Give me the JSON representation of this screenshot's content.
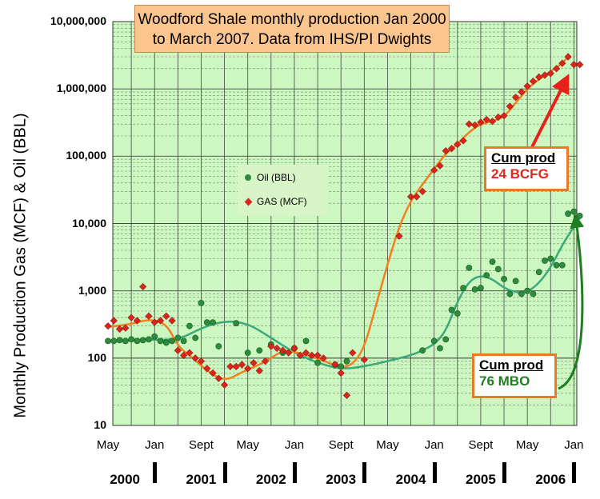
{
  "chart_data": {
    "type": "scatter",
    "title_lines": [
      "Woodford Shale monthly production Jan 2000",
      "to March 2007. Data from IHS/PI Dwights"
    ],
    "ylabel": "Monthly Production Gas (MCF) & Oil (BBL)",
    "yscale": "log",
    "ylim": [
      10,
      10000000
    ],
    "yticks": [
      "10",
      "100",
      "1,000",
      "10,000",
      "100,000",
      "1,000,000",
      "10,000,000"
    ],
    "month_labels": [
      "May",
      "Jan",
      "Sept",
      "May",
      "Jan",
      "Sept",
      "May",
      "Jan",
      "Sept",
      "May",
      "Jan"
    ],
    "year_labels": [
      "2000",
      "2001",
      "2002",
      "2003",
      "2004",
      "2005",
      "2006"
    ],
    "grid": true,
    "legend_position": "center-left",
    "series": [
      {
        "name": "Oil (BBL)",
        "color": "#2e8b3e",
        "marker": "circle",
        "points": [
          [
            "2000-05",
            180
          ],
          [
            "2000-06",
            180
          ],
          [
            "2000-07",
            185
          ],
          [
            "2000-08",
            180
          ],
          [
            "2000-09",
            190
          ],
          [
            "2000-10",
            180
          ],
          [
            "2000-11",
            185
          ],
          [
            "2000-12",
            190
          ],
          [
            "2001-01",
            210
          ],
          [
            "2001-02",
            180
          ],
          [
            "2001-03",
            170
          ],
          [
            "2001-04",
            180
          ],
          [
            "2001-05",
            200
          ],
          [
            "2001-06",
            180
          ],
          [
            "2001-07",
            300
          ],
          [
            "2001-08",
            200
          ],
          [
            "2001-09",
            660
          ],
          [
            "2001-10",
            340
          ],
          [
            "2001-11",
            340
          ],
          [
            "2001-12",
            150
          ],
          [
            "2002-03",
            330
          ],
          [
            "2002-05",
            120
          ],
          [
            "2002-07",
            130
          ],
          [
            "2002-09",
            160
          ],
          [
            "2002-11",
            120
          ],
          [
            "2003-01",
            140
          ],
          [
            "2003-03",
            180
          ],
          [
            "2003-05",
            85
          ],
          [
            "2003-08",
            80
          ],
          [
            "2003-09",
            75
          ],
          [
            "2003-10",
            90
          ],
          [
            "2004-11",
            130
          ],
          [
            "2005-01",
            180
          ],
          [
            "2005-02",
            140
          ],
          [
            "2005-03",
            190
          ],
          [
            "2005-04",
            520
          ],
          [
            "2005-05",
            460
          ],
          [
            "2005-06",
            1100
          ],
          [
            "2005-07",
            2200
          ],
          [
            "2005-08",
            1050
          ],
          [
            "2005-09",
            1100
          ],
          [
            "2005-10",
            1700
          ],
          [
            "2005-11",
            2700
          ],
          [
            "2005-12",
            2100
          ],
          [
            "2006-01",
            1500
          ],
          [
            "2006-02",
            900
          ],
          [
            "2006-03",
            1400
          ],
          [
            "2006-04",
            900
          ],
          [
            "2006-05",
            1000
          ],
          [
            "2006-06",
            900
          ],
          [
            "2006-07",
            1900
          ],
          [
            "2006-08",
            2800
          ],
          [
            "2006-09",
            3000
          ],
          [
            "2006-10",
            2400
          ],
          [
            "2006-11",
            2400
          ],
          [
            "2006-12",
            14000
          ],
          [
            "2007-01",
            15000
          ],
          [
            "2007-02",
            13000
          ]
        ]
      },
      {
        "name": "GAS (MCF)",
        "color": "#d9261c",
        "marker": "diamond",
        "points": [
          [
            "2000-05",
            300
          ],
          [
            "2000-06",
            360
          ],
          [
            "2000-07",
            270
          ],
          [
            "2000-08",
            280
          ],
          [
            "2000-09",
            400
          ],
          [
            "2000-10",
            360
          ],
          [
            "2000-11",
            1150
          ],
          [
            "2000-12",
            420
          ],
          [
            "2001-01",
            340
          ],
          [
            "2001-02",
            360
          ],
          [
            "2001-03",
            420
          ],
          [
            "2001-04",
            360
          ],
          [
            "2001-05",
            130
          ],
          [
            "2001-06",
            110
          ],
          [
            "2001-07",
            120
          ],
          [
            "2001-08",
            100
          ],
          [
            "2001-09",
            90
          ],
          [
            "2001-10",
            70
          ],
          [
            "2001-11",
            60
          ],
          [
            "2001-12",
            50
          ],
          [
            "2002-01",
            40
          ],
          [
            "2002-02",
            75
          ],
          [
            "2002-03",
            75
          ],
          [
            "2002-04",
            80
          ],
          [
            "2002-05",
            70
          ],
          [
            "2002-06",
            85
          ],
          [
            "2002-07",
            65
          ],
          [
            "2002-08",
            90
          ],
          [
            "2002-09",
            150
          ],
          [
            "2002-10",
            140
          ],
          [
            "2002-11",
            130
          ],
          [
            "2002-12",
            120
          ],
          [
            "2003-01",
            140
          ],
          [
            "2003-02",
            110
          ],
          [
            "2003-03",
            120
          ],
          [
            "2003-04",
            110
          ],
          [
            "2003-05",
            110
          ],
          [
            "2003-06",
            100
          ],
          [
            "2003-08",
            80
          ],
          [
            "2003-09",
            60
          ],
          [
            "2003-10",
            28
          ],
          [
            "2003-11",
            120
          ],
          [
            "2004-01",
            95
          ],
          [
            "2004-07",
            6500
          ],
          [
            "2004-09",
            25000
          ],
          [
            "2004-10",
            25000
          ],
          [
            "2004-11",
            30000
          ],
          [
            "2005-01",
            62000
          ],
          [
            "2005-02",
            72000
          ],
          [
            "2005-03",
            120000
          ],
          [
            "2005-04",
            130000
          ],
          [
            "2005-05",
            150000
          ],
          [
            "2005-06",
            170000
          ],
          [
            "2005-07",
            300000
          ],
          [
            "2005-08",
            290000
          ],
          [
            "2005-09",
            320000
          ],
          [
            "2005-10",
            350000
          ],
          [
            "2005-11",
            330000
          ],
          [
            "2005-12",
            380000
          ],
          [
            "2006-01",
            400000
          ],
          [
            "2006-02",
            550000
          ],
          [
            "2006-03",
            750000
          ],
          [
            "2006-04",
            900000
          ],
          [
            "2006-05",
            1100000
          ],
          [
            "2006-06",
            1300000
          ],
          [
            "2006-07",
            1500000
          ],
          [
            "2006-08",
            1600000
          ],
          [
            "2006-09",
            1700000
          ],
          [
            "2006-10",
            2000000
          ],
          [
            "2006-11",
            2400000
          ],
          [
            "2006-12",
            3000000
          ],
          [
            "2007-01",
            2300000
          ],
          [
            "2007-02",
            2300000
          ]
        ]
      }
    ],
    "trend_lines": [
      {
        "series": "Oil (BBL)",
        "color": "#3aaa7a",
        "points": [
          [
            "2000-05",
            180
          ],
          [
            "2000-11",
            190
          ],
          [
            "2001-05",
            185
          ],
          [
            "2001-09",
            280
          ],
          [
            "2002-01",
            360
          ],
          [
            "2002-05",
            330
          ],
          [
            "2002-09",
            200
          ],
          [
            "2003-01",
            120
          ],
          [
            "2003-05",
            85
          ],
          [
            "2003-09",
            68
          ],
          [
            "2004-01",
            75
          ],
          [
            "2004-05",
            90
          ],
          [
            "2004-09",
            110
          ],
          [
            "2004-11",
            130
          ],
          [
            "2005-01",
            160
          ],
          [
            "2005-03",
            250
          ],
          [
            "2005-05",
            700
          ],
          [
            "2005-07",
            1400
          ],
          [
            "2005-09",
            1700
          ],
          [
            "2005-11",
            1500
          ],
          [
            "2006-01",
            1100
          ],
          [
            "2006-03",
            950
          ],
          [
            "2006-05",
            950
          ],
          [
            "2006-07",
            1300
          ],
          [
            "2006-09",
            2200
          ],
          [
            "2006-11",
            4800
          ],
          [
            "2007-01",
            9000
          ],
          [
            "2007-02",
            12000
          ]
        ]
      },
      {
        "series": "GAS (MCF)",
        "color": "#f08020",
        "points": [
          [
            "2000-05",
            290
          ],
          [
            "2000-09",
            320
          ],
          [
            "2000-12",
            380
          ],
          [
            "2001-03",
            330
          ],
          [
            "2001-05",
            150
          ],
          [
            "2001-07",
            110
          ],
          [
            "2001-10",
            65
          ],
          [
            "2002-01",
            45
          ],
          [
            "2002-04",
            62
          ],
          [
            "2002-07",
            80
          ],
          [
            "2002-09",
            100
          ],
          [
            "2002-11",
            130
          ],
          [
            "2003-01",
            125
          ],
          [
            "2003-04",
            105
          ],
          [
            "2003-07",
            85
          ],
          [
            "2003-09",
            72
          ],
          [
            "2003-11",
            80
          ],
          [
            "2004-01",
            140
          ],
          [
            "2004-03",
            600
          ],
          [
            "2004-05",
            2500
          ],
          [
            "2004-07",
            9000
          ],
          [
            "2004-09",
            22000
          ],
          [
            "2004-11",
            38000
          ],
          [
            "2005-01",
            65000
          ],
          [
            "2005-03",
            110000
          ],
          [
            "2005-05",
            150000
          ],
          [
            "2005-07",
            230000
          ],
          [
            "2005-09",
            300000
          ],
          [
            "2005-11",
            330000
          ],
          [
            "2006-01",
            380000
          ],
          [
            "2006-03",
            620000
          ],
          [
            "2006-05",
            1000000
          ],
          [
            "2006-07",
            1400000
          ],
          [
            "2006-09",
            1800000
          ],
          [
            "2006-11",
            2400000
          ],
          [
            "2006-12",
            3000000
          ]
        ]
      }
    ]
  },
  "annotations": {
    "gas_box": {
      "head": "Cum prod",
      "value": "24 BCFG"
    },
    "oil_box": {
      "head": "Cum prod",
      "value": "76 MBO"
    }
  },
  "colors": {
    "plot_background": "#ccf7c0",
    "title_box": "#fbc58f",
    "gas_arrow": "#e8201a",
    "oil_arrow": "#1f7d22"
  }
}
